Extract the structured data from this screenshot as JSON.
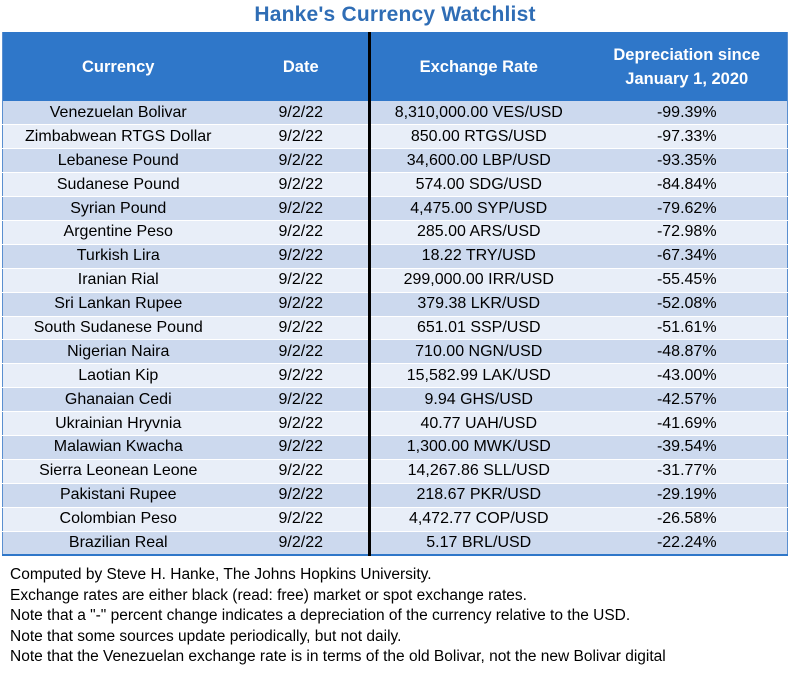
{
  "title": "Hanke's Currency Watchlist",
  "table": {
    "headers": {
      "currency": "Currency",
      "date": "Date",
      "rate": "Exchange Rate",
      "depreciation_line1": "Depreciation since",
      "depreciation_line2": "January 1, 2020"
    },
    "rows": [
      {
        "currency": "Venezuelan Bolivar",
        "date": "9/2/22",
        "rate": "8,310,000.00 VES/USD",
        "change": "-99.39%"
      },
      {
        "currency": "Zimbabwean RTGS Dollar",
        "date": "9/2/22",
        "rate": "850.00 RTGS/USD",
        "change": "-97.33%"
      },
      {
        "currency": "Lebanese Pound",
        "date": "9/2/22",
        "rate": "34,600.00 LBP/USD",
        "change": "-93.35%"
      },
      {
        "currency": "Sudanese Pound",
        "date": "9/2/22",
        "rate": "574.00 SDG/USD",
        "change": "-84.84%"
      },
      {
        "currency": "Syrian Pound",
        "date": "9/2/22",
        "rate": "4,475.00 SYP/USD",
        "change": "-79.62%"
      },
      {
        "currency": "Argentine Peso",
        "date": "9/2/22",
        "rate": "285.00 ARS/USD",
        "change": "-72.98%"
      },
      {
        "currency": "Turkish Lira",
        "date": "9/2/22",
        "rate": "18.22 TRY/USD",
        "change": "-67.34%"
      },
      {
        "currency": "Iranian Rial",
        "date": "9/2/22",
        "rate": "299,000.00 IRR/USD",
        "change": "-55.45%"
      },
      {
        "currency": "Sri Lankan Rupee",
        "date": "9/2/22",
        "rate": "379.38 LKR/USD",
        "change": "-52.08%"
      },
      {
        "currency": "South Sudanese Pound",
        "date": "9/2/22",
        "rate": "651.01 SSP/USD",
        "change": "-51.61%"
      },
      {
        "currency": "Nigerian Naira",
        "date": "9/2/22",
        "rate": "710.00 NGN/USD",
        "change": "-48.87%"
      },
      {
        "currency": "Laotian Kip",
        "date": "9/2/22",
        "rate": "15,582.99 LAK/USD",
        "change": "-43.00%"
      },
      {
        "currency": "Ghanaian Cedi",
        "date": "9/2/22",
        "rate": "9.94 GHS/USD",
        "change": "-42.57%"
      },
      {
        "currency": "Ukrainian Hryvnia",
        "date": "9/2/22",
        "rate": "40.77 UAH/USD",
        "change": "-41.69%"
      },
      {
        "currency": "Malawian Kwacha",
        "date": "9/2/22",
        "rate": "1,300.00 MWK/USD",
        "change": "-39.54%"
      },
      {
        "currency": "Sierra Leonean Leone",
        "date": "9/2/22",
        "rate": "14,267.86 SLL/USD",
        "change": "-31.77%"
      },
      {
        "currency": "Pakistani Rupee",
        "date": "9/2/22",
        "rate": "218.67 PKR/USD",
        "change": "-29.19%"
      },
      {
        "currency": "Colombian Peso",
        "date": "9/2/22",
        "rate": "4,472.77 COP/USD",
        "change": "-26.58%"
      },
      {
        "currency": "Brazilian Real",
        "date": "9/2/22",
        "rate": "5.17 BRL/USD",
        "change": "-22.24%"
      }
    ]
  },
  "notes": [
    "Computed by Steve H. Hanke, The Johns Hopkins University.",
    "Exchange rates are either black (read: free) market or spot exchange rates.",
    "Note that a \"-\" percent change indicates a depreciation of the currency relative to the USD.",
    "Note that some sources update periodically, but not daily.",
    "Note that the Venezuelan exchange rate is in terms of the old Bolivar, not the new Bolivar digital"
  ],
  "colors": {
    "title": "#2f6db5",
    "header_bg": "#2f77c9",
    "row_odd": "#ccd9ee",
    "row_even": "#e8eef8"
  }
}
